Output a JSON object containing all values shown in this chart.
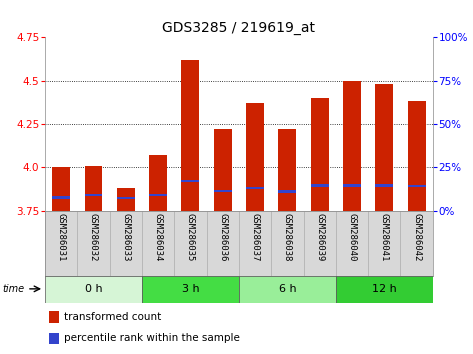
{
  "title": "GDS3285 / 219619_at",
  "samples": [
    "GSM286031",
    "GSM286032",
    "GSM286033",
    "GSM286034",
    "GSM286035",
    "GSM286036",
    "GSM286037",
    "GSM286038",
    "GSM286039",
    "GSM286040",
    "GSM286041",
    "GSM286042"
  ],
  "transformed_counts": [
    4.0,
    4.01,
    3.88,
    4.07,
    4.62,
    4.22,
    4.37,
    4.22,
    4.4,
    4.5,
    4.48,
    4.38
  ],
  "percentile_values": [
    3.825,
    3.84,
    3.822,
    3.84,
    3.92,
    3.862,
    3.882,
    3.86,
    3.895,
    3.895,
    3.895,
    3.893
  ],
  "bar_bottom": 3.75,
  "ylim": [
    3.75,
    4.75
  ],
  "yticks": [
    3.75,
    4.0,
    4.25,
    4.5,
    4.75
  ],
  "right_yticks": [
    0,
    25,
    50,
    75,
    100
  ],
  "bar_color": "#cc2200",
  "percentile_color": "#3344cc",
  "groups": [
    {
      "label": "0 h",
      "start": 0,
      "end": 3,
      "color": "#d6f5d6"
    },
    {
      "label": "3 h",
      "start": 3,
      "end": 6,
      "color": "#44dd44"
    },
    {
      "label": "6 h",
      "start": 6,
      "end": 9,
      "color": "#99ee99"
    },
    {
      "label": "12 h",
      "start": 9,
      "end": 12,
      "color": "#33cc33"
    }
  ],
  "label_bg_color": "#d8d8d8",
  "bar_width": 0.55,
  "title_fontsize": 10,
  "tick_fontsize": 7.5,
  "label_fontsize": 6.5
}
